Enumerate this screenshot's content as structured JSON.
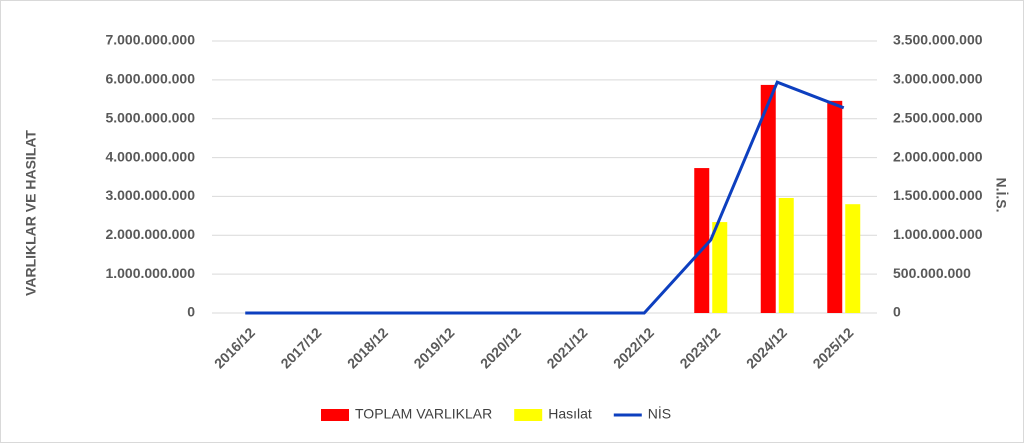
{
  "chart_data": {
    "type": "bar",
    "categories": [
      "2016/12",
      "2017/12",
      "2018/12",
      "2019/12",
      "2020/12",
      "2021/12",
      "2022/12",
      "2023/12",
      "2024/12",
      "2025/12"
    ],
    "series": [
      {
        "name": "TOPLAM VARLIKLAR",
        "type": "bar",
        "color": "#ff0000",
        "values": [
          0,
          0,
          0,
          0,
          0,
          0,
          0,
          3730000000,
          5870000000,
          5460000000
        ]
      },
      {
        "name": "Hasılat",
        "type": "bar",
        "color": "#ffff00",
        "values": [
          0,
          0,
          0,
          0,
          0,
          0,
          0,
          2340000000,
          2960000000,
          2800000000
        ]
      },
      {
        "name": "NİS",
        "type": "line",
        "axis": "y2",
        "color": "#0d3fbf",
        "values": [
          0,
          0,
          0,
          0,
          0,
          0,
          0,
          940000000,
          2970000000,
          2640000000
        ]
      }
    ],
    "ylabel": "VARLIKLAR VE HASILAT",
    "y2label": "N.İ.S.",
    "ylim": [
      0,
      7000000000
    ],
    "yticks": [
      0,
      {
        "value": 1000000000,
        "label": "1.000.000.000"
      },
      {
        "value": 2000000000,
        "label": "2.000.000.000"
      },
      {
        "value": 3000000000,
        "label": "3.000.000.000"
      },
      {
        "value": 4000000000,
        "label": "4.000.000.000"
      },
      {
        "value": 5000000000,
        "label": "5.000.000.000"
      },
      {
        "value": 6000000000,
        "label": "6.000.000.000"
      },
      {
        "value": 7000000000,
        "label": "7.000.000.000"
      }
    ],
    "y2lim": [
      0,
      3500000000
    ],
    "y2ticks": [
      0,
      {
        "value": 500000000,
        "label": "500.000.000"
      },
      {
        "value": 1000000000,
        "label": "1.000.000.000"
      },
      {
        "value": 1500000000,
        "label": "1.500.000.000"
      },
      {
        "value": 2000000000,
        "label": "2.000.000.000"
      },
      {
        "value": 2500000000,
        "label": "2.500.000.000"
      },
      {
        "value": 3000000000,
        "label": "3.000.000.000"
      },
      {
        "value": 3500000000,
        "label": "3.500.000.000"
      }
    ],
    "grid": true,
    "legend": "bottom"
  }
}
